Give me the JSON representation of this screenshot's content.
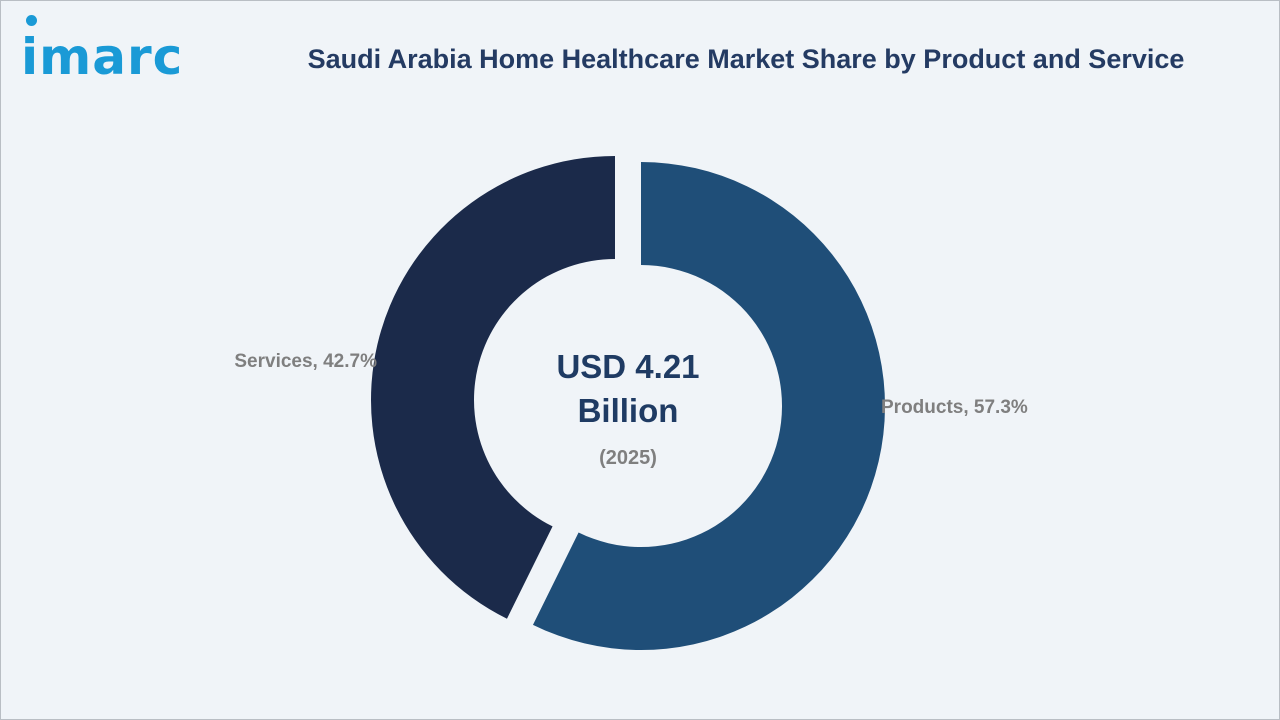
{
  "brand": {
    "logo_text": "imarc",
    "color": "#1a9ad6"
  },
  "chart_data": {
    "type": "pie",
    "variant": "donut",
    "title": "Saudi Arabia Home Healthcare Market Share by Product and Service",
    "center_label": {
      "line1": "USD 4.21",
      "line2": "Billion",
      "line3": "(2025)"
    },
    "slices": [
      {
        "name": "Products",
        "value": 57.3,
        "label": "Products, 57.3%",
        "color": "#1f4e78"
      },
      {
        "name": "Services",
        "value": 42.7,
        "label": "Services, 42.7%",
        "color": "#1b2a4a"
      }
    ],
    "unit": "%",
    "legend": "none"
  }
}
